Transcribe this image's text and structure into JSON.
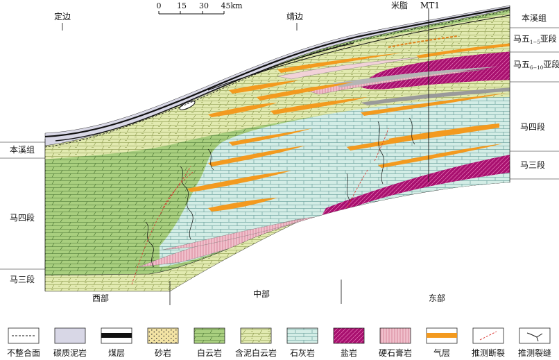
{
  "scale_bar": {
    "ticks": [
      "0",
      "15",
      "30",
      "45km"
    ]
  },
  "top_places": {
    "dingbian": "定边",
    "jingbian": "靖边",
    "mizhi": "米脂",
    "well": "MT1"
  },
  "right_units": {
    "benxi": "本溪组",
    "ma5_upper": {
      "prefix": "马五",
      "sub": "1−5",
      "suffix": "亚段"
    },
    "ma5_lower": {
      "prefix": "马五",
      "sub": "6−10",
      "suffix": "亚段"
    },
    "ma4": "马四段",
    "ma3": "马三段"
  },
  "left_units": {
    "benxi": "本溪组",
    "ma4": "马四段",
    "ma3": "马三段"
  },
  "regions": {
    "west": "西部",
    "central": "中部",
    "east": "东部"
  },
  "legend": [
    {
      "label": "不整合面",
      "pattern": "unconformity"
    },
    {
      "label": "碳质泥岩",
      "pattern": "carb-mudstone"
    },
    {
      "label": "煤层",
      "pattern": "coal"
    },
    {
      "label": "砂岩",
      "pattern": "sandstone"
    },
    {
      "label": "白云岩",
      "pattern": "dolomite"
    },
    {
      "label": "含泥白云岩",
      "pattern": "argil-dolomite"
    },
    {
      "label": "石灰岩",
      "pattern": "limestone"
    },
    {
      "label": "盐岩",
      "pattern": "salt"
    },
    {
      "label": "硬石膏岩",
      "pattern": "anhydrite"
    },
    {
      "label": "气层",
      "pattern": "gas"
    },
    {
      "label": "推测断裂",
      "pattern": "fault"
    },
    {
      "label": "推测裂缝",
      "pattern": "fracture"
    }
  ],
  "colors": {
    "dolomite": "#a9cf7f",
    "argil_dolomite": "#e2eab0",
    "limestone": "#d3ede6",
    "salt": "#a8106f",
    "anhydrite": "#f0c0cc",
    "gas": "#f39a1f",
    "carb_mudstone": "#d8d7e6",
    "coal": "#111111",
    "fault": "#d9312b"
  }
}
